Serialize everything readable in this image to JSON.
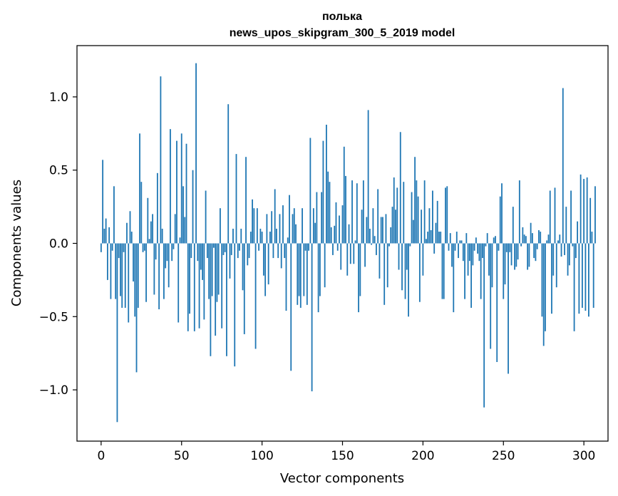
{
  "chart_data": {
    "type": "bar",
    "title_line1": "полька",
    "title_line2": "news_upos_skipgram_300_5_2019 model",
    "xlabel": "Vector components",
    "ylabel": "Components values",
    "xlim": [
      -15,
      315
    ],
    "ylim": [
      -1.35,
      1.35
    ],
    "xticks": [
      0,
      50,
      100,
      150,
      200,
      250,
      300
    ],
    "xtick_labels": [
      "0",
      "50",
      "100",
      "150",
      "200",
      "250",
      "300"
    ],
    "yticks": [
      -1.0,
      -0.5,
      0.0,
      0.5,
      1.0
    ],
    "ytick_labels": [
      "−1.0",
      "−0.5",
      "0.0",
      "0.5",
      "1.0"
    ],
    "color": "#1f77b4",
    "values": [
      -0.06,
      0.57,
      0.1,
      0.17,
      -0.25,
      0.11,
      -0.38,
      -0.05,
      0.39,
      -0.38,
      -1.22,
      -0.1,
      -0.36,
      -0.44,
      -0.06,
      -0.44,
      0.14,
      -0.54,
      0.22,
      0.08,
      -0.26,
      -0.5,
      -0.88,
      -0.44,
      0.75,
      0.42,
      -0.06,
      -0.05,
      -0.4,
      0.31,
      0.03,
      0.15,
      0.2,
      -0.35,
      -0.11,
      0.48,
      -0.45,
      1.14,
      0.1,
      -0.38,
      -0.17,
      -0.12,
      -0.3,
      0.78,
      -0.12,
      -0.04,
      0.2,
      0.7,
      -0.54,
      0.04,
      0.75,
      0.39,
      0.18,
      0.68,
      -0.6,
      -0.48,
      -0.1,
      0.5,
      -0.6,
      1.23,
      -0.12,
      -0.58,
      -0.18,
      -0.25,
      -0.52,
      0.36,
      -0.1,
      -0.38,
      -0.77,
      -0.36,
      -0.03,
      -0.63,
      -0.4,
      -0.35,
      0.24,
      -0.58,
      -0.08,
      -0.06,
      -0.77,
      0.95,
      -0.24,
      -0.08,
      0.1,
      -0.84,
      0.61,
      -0.1,
      -0.05,
      0.1,
      -0.32,
      -0.62,
      0.59,
      -0.15,
      -0.1,
      0.08,
      0.3,
      0.24,
      -0.72,
      0.24,
      -0.05,
      0.1,
      0.08,
      -0.22,
      -0.36,
      0.2,
      -0.28,
      0.08,
      0.22,
      -0.1,
      0.37,
      0.1,
      -0.1,
      0.2,
      -0.17,
      0.26,
      -0.1,
      -0.46,
      0.04,
      0.33,
      -0.87,
      0.2,
      0.24,
      0.13,
      -0.42,
      -0.36,
      -0.44,
      0.24,
      -0.36,
      -0.05,
      -0.42,
      -0.05,
      0.72,
      -1.01,
      0.24,
      0.14,
      0.35,
      -0.47,
      -0.36,
      0.35,
      0.7,
      -0.3,
      0.81,
      0.49,
      0.42,
      0.11,
      -0.08,
      0.12,
      0.28,
      -0.05,
      0.19,
      -0.18,
      0.26,
      0.66,
      0.46,
      -0.22,
      0.13,
      -0.14,
      0.43,
      -0.14,
      0.02,
      0.41,
      -0.47,
      -0.36,
      0.23,
      0.43,
      -0.16,
      0.18,
      0.91,
      0.1,
      -0.01,
      0.24,
      0.05,
      -0.08,
      0.37,
      -0.24,
      0.18,
      0.18,
      -0.42,
      0.2,
      -0.3,
      -0.02,
      0.11,
      0.25,
      0.45,
      0.23,
      0.38,
      -0.18,
      0.76,
      -0.32,
      0.42,
      -0.38,
      -0.18,
      -0.5,
      -0.02,
      0.35,
      0.16,
      0.59,
      0.43,
      0.32,
      -0.4,
      0.23,
      -0.22,
      0.43,
      0.03,
      0.08,
      0.24,
      0.09,
      0.36,
      -0.07,
      0.14,
      0.29,
      0.08,
      0.08,
      -0.38,
      -0.38,
      0.38,
      0.39,
      -0.05,
      0.07,
      -0.16,
      -0.47,
      -0.05,
      0.08,
      -0.1,
      0.02,
      0.02,
      -0.12,
      -0.38,
      0.07,
      -0.22,
      -0.12,
      -0.44,
      -0.15,
      -0.05,
      0.04,
      -0.07,
      -0.12,
      -0.38,
      -0.1,
      -1.12,
      -0.02,
      0.07,
      -0.22,
      -0.72,
      -0.3,
      0.04,
      0.05,
      -0.81,
      -0.05,
      0.32,
      0.41,
      -0.38,
      -0.28,
      -0.06,
      -0.89,
      -0.06,
      -0.15,
      0.25,
      -0.18,
      -0.16,
      -0.11,
      0.43,
      -0.02,
      0.11,
      0.06,
      0.05,
      -0.18,
      -0.16,
      0.14,
      0.07,
      -0.1,
      -0.12,
      -0.04,
      0.09,
      0.08,
      -0.5,
      -0.7,
      -0.6,
      0.02,
      0.06,
      0.36,
      -0.48,
      -0.22,
      0.38,
      -0.3,
      0.02,
      0.06,
      -0.09,
      1.06,
      -0.08,
      0.25,
      -0.22,
      -0.15,
      0.36,
      -0.02,
      -0.6,
      -0.1,
      0.15,
      -0.48,
      0.47,
      -0.44,
      0.44,
      -0.46,
      0.45,
      -0.5,
      0.31,
      0.08,
      -0.44,
      0.39
    ]
  }
}
